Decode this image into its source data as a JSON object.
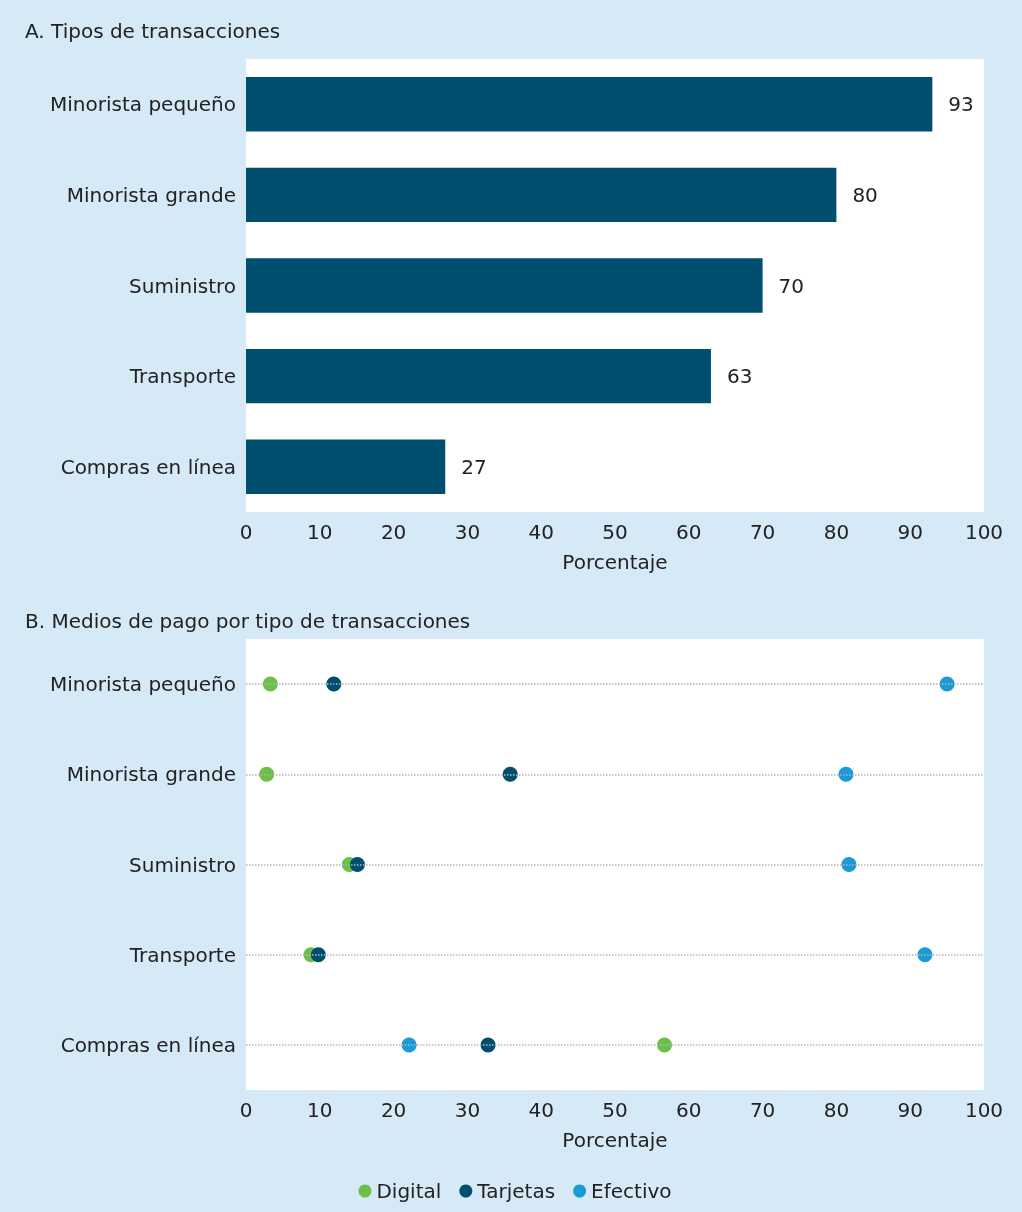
{
  "chart_data": [
    {
      "type": "bar",
      "orientation": "horizontal",
      "title": "A. Tipos de transacciones",
      "categories": [
        "Minorista pequeño",
        "Minorista grande",
        "Suministro",
        "Transporte",
        "Compras en línea"
      ],
      "values": [
        93,
        80,
        70,
        63,
        27
      ],
      "color": "#004f6e",
      "data_labels": true,
      "xlabel": "Porcentaje",
      "xlim": [
        0,
        100
      ],
      "xticks": [
        0,
        10,
        20,
        30,
        40,
        50,
        60,
        70,
        80,
        90,
        100
      ],
      "grid": false
    },
    {
      "type": "scatter",
      "orientation": "horizontal",
      "title": "B. Medios de pago por tipo de transacciones",
      "categories": [
        "Minorista pequeño",
        "Minorista grande",
        "Suministro",
        "Transporte",
        "Compras en línea"
      ],
      "series": [
        {
          "name": "Digital",
          "color": "#6cbf48",
          "values": [
            3.3,
            2.8,
            14.0,
            8.8,
            56.7
          ]
        },
        {
          "name": "Tarjetas",
          "color": "#004f6e",
          "values": [
            11.9,
            35.8,
            15.1,
            9.8,
            32.8
          ]
        },
        {
          "name": "Efectivo",
          "color": "#1b9ad7",
          "values": [
            95,
            81.3,
            81.7,
            92,
            22.1
          ]
        }
      ],
      "xlabel": "Porcentaje",
      "xlim": [
        0,
        100
      ],
      "xticks": [
        0,
        10,
        20,
        30,
        40,
        50,
        60,
        70,
        80,
        90,
        100
      ],
      "grid": "y",
      "legend": "bottom",
      "marker": "circle"
    }
  ]
}
